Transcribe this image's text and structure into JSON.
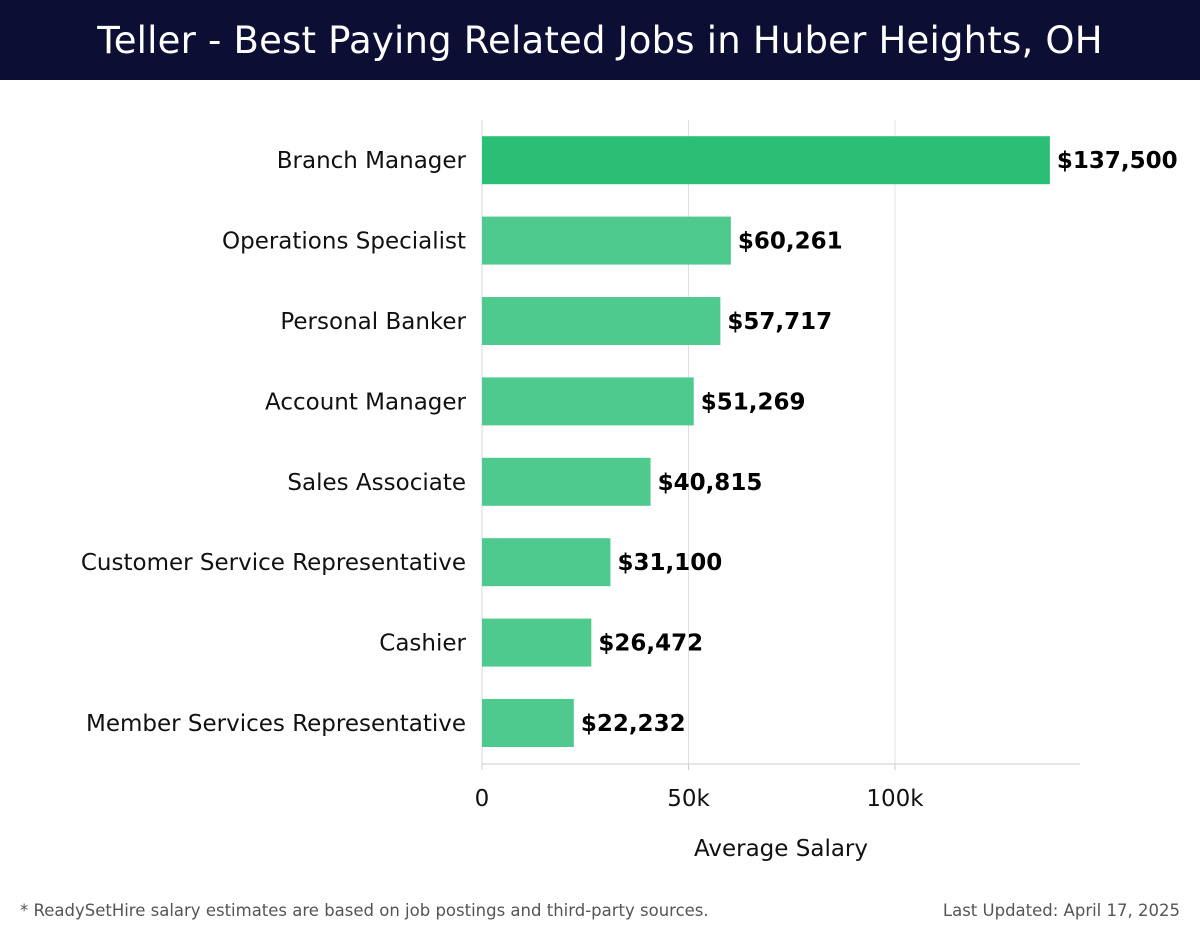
{
  "title": "Teller - Best Paying Related Jobs in Huber Heights, OH",
  "footer": {
    "note": "* ReadySetHire salary estimates are based on job postings and third-party sources.",
    "updated": "Last Updated: April 17, 2025"
  },
  "colors": {
    "header_bg": "#0c0e33",
    "bar_top": "#2bbf75",
    "bar": "#4fca8e",
    "grid": "#e0e0e0"
  },
  "chart_data": {
    "type": "bar",
    "orientation": "horizontal",
    "categories": [
      "Branch Manager",
      "Operations Specialist",
      "Personal Banker",
      "Account Manager",
      "Sales Associate",
      "Customer Service Representative",
      "Cashier",
      "Member Services Representative"
    ],
    "values": [
      137500,
      60261,
      57717,
      51269,
      40815,
      31100,
      26472,
      22232
    ],
    "value_labels": [
      "$137,500",
      "$60,261",
      "$57,717",
      "$51,269",
      "$40,815",
      "$31,100",
      "$26,472",
      "$22,232"
    ],
    "xlabel": "Average Salary",
    "xlim": [
      0,
      145000
    ],
    "xticks": [
      0,
      50000,
      100000
    ],
    "xtick_labels": [
      "0",
      "50k",
      "100k"
    ],
    "grid": "vertical"
  }
}
